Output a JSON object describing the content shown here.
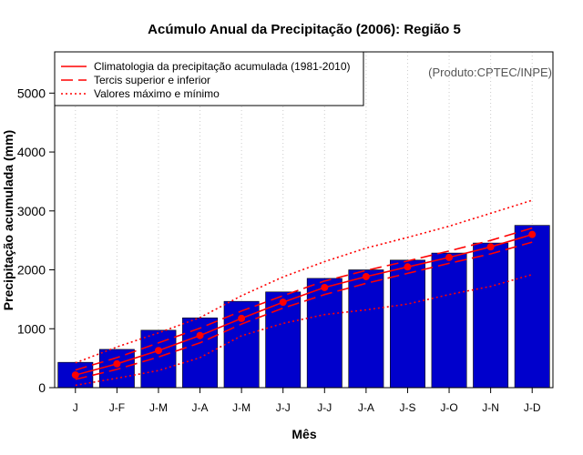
{
  "chart_data": {
    "type": "bar",
    "title": "Acúmulo Anual da Precipitação (2006): Região 5",
    "xlabel": "Mês",
    "ylabel": "Precipitação acumulada (mm)",
    "credit": "(Produto:CPTEC/INPE)",
    "ylim": [
      0,
      5700
    ],
    "yticks": [
      0,
      1000,
      2000,
      3000,
      4000,
      5000
    ],
    "categories": [
      "J",
      "J-F",
      "J-M",
      "J-A",
      "J-M",
      "J-J",
      "J-J",
      "J-A",
      "J-S",
      "J-O",
      "J-N",
      "J-D"
    ],
    "bar_series": {
      "name": "Precipitação acumulada 2006",
      "color": "#0000CC",
      "values": [
        430,
        650,
        975,
        1185,
        1465,
        1625,
        1855,
        2000,
        2165,
        2285,
        2455,
        2755
      ]
    },
    "line_series": [
      {
        "name": "Climatologia da precipitação acumulada (1981-2010)",
        "style": "solid",
        "markers": true,
        "color": "#FF0000",
        "values": [
          215,
          405,
          630,
          885,
          1175,
          1450,
          1700,
          1885,
          2050,
          2210,
          2390,
          2600
        ]
      },
      {
        "name": "Tercis superior",
        "style": "dashed",
        "color": "#FF0000",
        "values": [
          300,
          510,
          760,
          1010,
          1300,
          1560,
          1810,
          1990,
          2150,
          2320,
          2500,
          2710
        ]
      },
      {
        "name": "Tercis inferior",
        "style": "dashed",
        "color": "#FF0000",
        "values": [
          140,
          310,
          520,
          760,
          1080,
          1350,
          1580,
          1770,
          1940,
          2110,
          2270,
          2470
        ]
      },
      {
        "name": "Valores máximo",
        "style": "dotted",
        "color": "#FF0000",
        "values": [
          420,
          690,
          930,
          1190,
          1560,
          1880,
          2140,
          2370,
          2550,
          2740,
          2960,
          3180
        ]
      },
      {
        "name": "Valores mínimo",
        "style": "dotted",
        "color": "#FF0000",
        "values": [
          40,
          160,
          290,
          510,
          880,
          1090,
          1240,
          1320,
          1420,
          1580,
          1720,
          1920
        ]
      }
    ],
    "legend": {
      "placement": "top-left",
      "entries": [
        {
          "label": "Climatologia da precipitação acumulada (1981-2010)",
          "style": "solid"
        },
        {
          "label": "Tercis superior e inferior",
          "style": "dashed"
        },
        {
          "label": "Valores máximo e mínimo",
          "style": "dotted"
        }
      ]
    },
    "grid": "vertical dotted lines at each month"
  }
}
